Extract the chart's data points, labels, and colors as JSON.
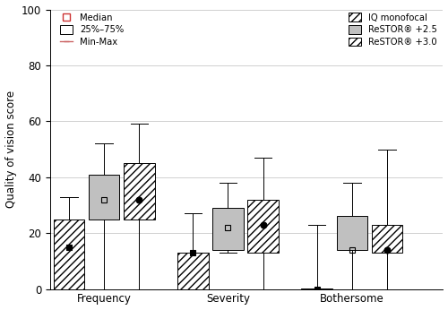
{
  "ylabel": "Quality of vision score",
  "ylim": [
    0,
    100
  ],
  "yticks": [
    0,
    20,
    40,
    60,
    80,
    100
  ],
  "groups": [
    "Frequency",
    "Severity",
    "Bothersome"
  ],
  "series_keys": [
    "IQ monofocal",
    "ReSTOR +2.5",
    "ReSTOR +3.0"
  ],
  "box_data": {
    "Frequency": {
      "IQ monofocal": {
        "min": 0,
        "q1": 0,
        "median": 15,
        "q3": 25,
        "max": 33
      },
      "ReSTOR +2.5": {
        "min": 0,
        "q1": 25,
        "median": 32,
        "q3": 41,
        "max": 52
      },
      "ReSTOR +3.0": {
        "min": 0,
        "q1": 25,
        "median": 32,
        "q3": 45,
        "max": 59
      }
    },
    "Severity": {
      "IQ monofocal": {
        "min": 0,
        "q1": 0,
        "median": 13,
        "q3": 13,
        "max": 27
      },
      "ReSTOR +2.5": {
        "min": 13,
        "q1": 14,
        "median": 22,
        "q3": 29,
        "max": 38
      },
      "ReSTOR +3.0": {
        "min": 0,
        "q1": 13,
        "median": 23,
        "q3": 32,
        "max": 47
      }
    },
    "Bothersome": {
      "IQ monofocal": {
        "min": 0,
        "q1": 0,
        "median": 0,
        "q3": 0,
        "max": 23
      },
      "ReSTOR +2.5": {
        "min": 0,
        "q1": 14,
        "median": 14,
        "q3": 26,
        "max": 38
      },
      "ReSTOR +3.0": {
        "min": 0,
        "q1": 13,
        "median": 14,
        "q3": 23,
        "max": 50
      }
    }
  },
  "face_colors": {
    "IQ monofocal": "#ffffff",
    "ReSTOR +2.5": "#c0c0c0",
    "ReSTOR +3.0": "#ffffff"
  },
  "hatch_patterns": {
    "IQ monofocal": "////",
    "ReSTOR +2.5": "",
    "ReSTOR +3.0": "////"
  },
  "median_filled": {
    "IQ monofocal": true,
    "ReSTOR +2.5": false,
    "ReSTOR +3.0": true
  },
  "median_markers": {
    "IQ monofocal": "s",
    "ReSTOR +2.5": "s",
    "ReSTOR +3.0": "o"
  },
  "group_positions": [
    1.3,
    4.3,
    7.3
  ],
  "series_offsets": [
    -0.85,
    0.0,
    0.85
  ],
  "box_width": 0.75,
  "background_color": "#ffffff",
  "grid_color": "#d0d0d0",
  "xlim": [
    0.0,
    9.5
  ]
}
